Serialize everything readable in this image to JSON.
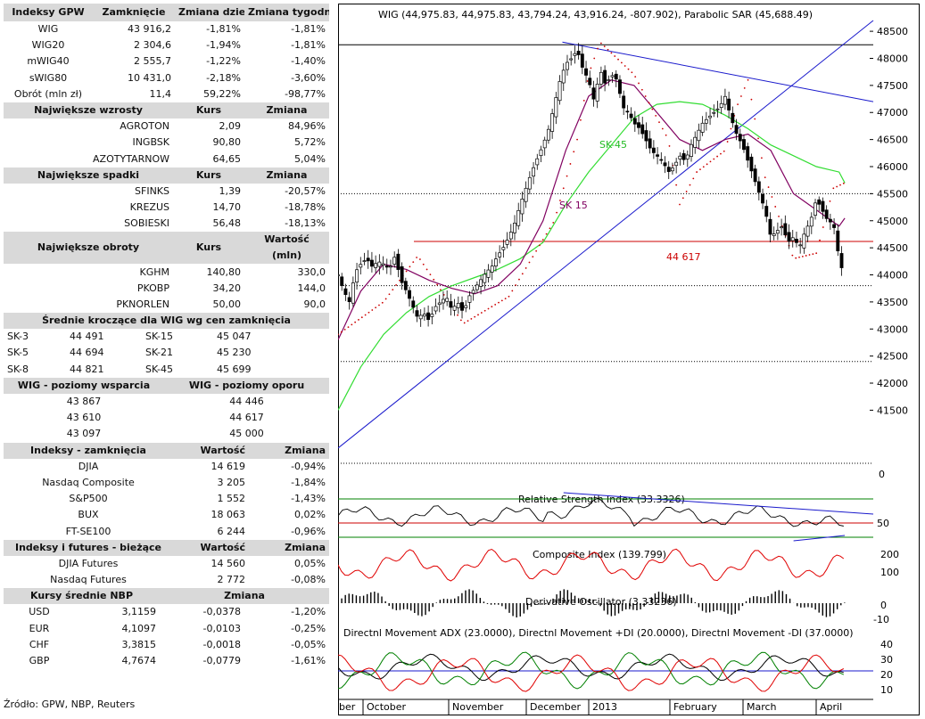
{
  "tables": {
    "gpw": {
      "headers": [
        "Indeksy GPW",
        "Zamknięcie",
        "Zmiana dzienna",
        "Zmiana tygodniowa"
      ],
      "rows": [
        [
          "WIG",
          "43 916,2",
          "-1,81%",
          "-1,81%"
        ],
        [
          "WIG20",
          "2 304,6",
          "-1,94%",
          "-1,81%"
        ],
        [
          "mWIG40",
          "2 555,7",
          "-1,22%",
          "-1,40%"
        ],
        [
          "sWIG80",
          "10 431,0",
          "-2,18%",
          "-3,60%"
        ],
        [
          "Obrót (mln zł)",
          "11,4",
          "59,22%",
          "-98,77%"
        ]
      ]
    },
    "wzrosty": {
      "headers": [
        "Największe wzrosty",
        "Kurs",
        "Zmiana"
      ],
      "rows": [
        [
          "AGROTON",
          "2,09",
          "84,96%"
        ],
        [
          "INGBSK",
          "90,80",
          "5,72%"
        ],
        [
          "AZOTYTARNOW",
          "64,65",
          "5,04%"
        ]
      ]
    },
    "spadki": {
      "headers": [
        "Największe spadki",
        "Kurs",
        "Zmiana"
      ],
      "rows": [
        [
          "SFINKS",
          "1,39",
          "-20,57%"
        ],
        [
          "KREZUS",
          "14,70",
          "-18,78%"
        ],
        [
          "SOBIESKI",
          "56,48",
          "-18,13%"
        ]
      ]
    },
    "obroty": {
      "headers": [
        "Największe obroty",
        "Kurs",
        "Wartość (mln)"
      ],
      "rows": [
        [
          "KGHM",
          "140,80",
          "330,0"
        ],
        [
          "PKOBP",
          "34,20",
          "144,0"
        ],
        [
          "PKNORLEN",
          "50,00",
          "90,0"
        ]
      ]
    },
    "srednie": {
      "header": "Średnie kroczące dla WIG wg cen zamknięcia",
      "rows": [
        [
          "SK-3",
          "44 491",
          "SK-15",
          "45 047"
        ],
        [
          "SK-5",
          "44 694",
          "SK-21",
          "45 230"
        ],
        [
          "SK-8",
          "44 821",
          "SK-45",
          "45 699"
        ]
      ]
    },
    "poziomy": {
      "headers": [
        "WIG - poziomy wsparcia",
        "WIG - poziomy oporu"
      ],
      "rows": [
        [
          "43 867",
          "44 446"
        ],
        [
          "43 610",
          "44 617"
        ],
        [
          "43 097",
          "45 000"
        ]
      ]
    },
    "swiat": {
      "headers": [
        "Indeksy - zamknięcia",
        "Wartość",
        "Zmiana"
      ],
      "rows": [
        [
          "DJIA",
          "14 619",
          "-0,94%"
        ],
        [
          "Nasdaq Composite",
          "3 205",
          "-1,84%"
        ],
        [
          "S&P500",
          "1 552",
          "-1,43%"
        ],
        [
          "BUX",
          "18 063",
          "0,02%"
        ],
        [
          "FT-SE100",
          "6 244",
          "-0,96%"
        ]
      ]
    },
    "futures": {
      "headers": [
        "Indeksy i futures - bieżące",
        "Wartość",
        "Zmiana"
      ],
      "rows": [
        [
          "DJIA Futures",
          "14 560",
          "0,05%"
        ],
        [
          "Nasdaq Futures",
          "2 772",
          "-0,08%"
        ]
      ]
    },
    "nbp": {
      "headers": [
        "Kursy średnie NBP",
        "Zmiana"
      ],
      "rows": [
        [
          "USD",
          "3,1159",
          "-0,0378",
          "-1,20%"
        ],
        [
          "EUR",
          "4,1097",
          "-0,0103",
          "-0,25%"
        ],
        [
          "CHF",
          "3,3815",
          "-0,0018",
          "-0,05%"
        ],
        [
          "GBP",
          "4,7674",
          "-0,0779",
          "-1,61%"
        ]
      ]
    }
  },
  "source": "Źródło: GPW, NBP, Reuters",
  "colors": {
    "header_bg": "#d9d9d9",
    "candles": "#000000",
    "sar": "#cc0000",
    "sk15": "#800060",
    "sk45": "#33dd33",
    "trend": "#1a1acc",
    "level": "#cc0000"
  },
  "chart_data": [
    {
      "type": "candlestick",
      "title": "WIG (44,975.83, 44,975.83, 43,794.24, 43,916.24, -807.902), Parabolic SAR (45,688.49)",
      "yticks": [
        41500,
        42000,
        42500,
        43000,
        43500,
        44000,
        44500,
        45000,
        45500,
        46000,
        46500,
        47000,
        47500,
        48000,
        48500
      ],
      "ylim": [
        40700,
        48650
      ],
      "xticks": [
        "ber",
        "October",
        "November",
        "December",
        "2013",
        "February",
        "March",
        "April"
      ],
      "close_path": [
        [
          0,
          44000
        ],
        [
          5,
          43700
        ],
        [
          10,
          43500
        ],
        [
          15,
          44050
        ],
        [
          20,
          44200
        ],
        [
          25,
          44300
        ],
        [
          30,
          44150
        ],
        [
          35,
          44250
        ],
        [
          40,
          44200
        ],
        [
          45,
          44100
        ],
        [
          50,
          44350
        ],
        [
          55,
          43900
        ],
        [
          60,
          43700
        ],
        [
          65,
          43450
        ],
        [
          70,
          43200
        ],
        [
          75,
          43300
        ],
        [
          80,
          43150
        ],
        [
          85,
          43400
        ],
        [
          90,
          43500
        ],
        [
          95,
          43600
        ],
        [
          100,
          43350
        ],
        [
          105,
          43500
        ],
        [
          110,
          43300
        ],
        [
          115,
          43600
        ],
        [
          120,
          43750
        ],
        [
          125,
          43900
        ],
        [
          130,
          44050
        ],
        [
          135,
          44150
        ],
        [
          140,
          44350
        ],
        [
          145,
          44500
        ],
        [
          150,
          44700
        ],
        [
          155,
          44950
        ],
        [
          160,
          45300
        ],
        [
          165,
          45600
        ],
        [
          170,
          45900
        ],
        [
          175,
          46150
        ],
        [
          180,
          46400
        ],
        [
          185,
          46700
        ],
        [
          190,
          47150
        ],
        [
          195,
          47600
        ],
        [
          200,
          47900
        ],
        [
          205,
          48000
        ],
        [
          210,
          48150
        ],
        [
          215,
          47800
        ],
        [
          220,
          47600
        ],
        [
          225,
          47200
        ],
        [
          230,
          47800
        ],
        [
          235,
          47500
        ],
        [
          240,
          47700
        ],
        [
          245,
          47600
        ],
        [
          250,
          47100
        ],
        [
          255,
          47000
        ],
        [
          260,
          46800
        ],
        [
          265,
          46700
        ],
        [
          270,
          46500
        ],
        [
          275,
          46300
        ],
        [
          280,
          46200
        ],
        [
          285,
          46100
        ],
        [
          290,
          45900
        ],
        [
          295,
          46000
        ],
        [
          300,
          46200
        ],
        [
          305,
          46100
        ],
        [
          310,
          46400
        ],
        [
          315,
          46600
        ],
        [
          320,
          46800
        ],
        [
          325,
          46900
        ],
        [
          330,
          47000
        ],
        [
          335,
          47100
        ],
        [
          340,
          47300
        ],
        [
          345,
          46900
        ],
        [
          350,
          46600
        ],
        [
          355,
          46400
        ],
        [
          360,
          46100
        ],
        [
          365,
          45800
        ],
        [
          370,
          45500
        ],
        [
          375,
          45200
        ],
        [
          380,
          44700
        ],
        [
          385,
          44800
        ],
        [
          390,
          44900
        ],
        [
          395,
          44600
        ],
        [
          400,
          44700
        ],
        [
          405,
          44500
        ],
        [
          410,
          44800
        ],
        [
          415,
          45000
        ],
        [
          420,
          45400
        ],
        [
          425,
          45200
        ],
        [
          430,
          45000
        ],
        [
          435,
          44950
        ],
        [
          440,
          44300
        ],
        [
          445,
          43916
        ]
      ],
      "sar_path": [
        [
          0,
          42900
        ],
        [
          40,
          43500
        ],
        [
          70,
          44350
        ],
        [
          110,
          43100
        ],
        [
          150,
          43600
        ],
        [
          190,
          45000
        ],
        [
          210,
          46500
        ],
        [
          220,
          47700
        ],
        [
          230,
          48300
        ],
        [
          260,
          47700
        ],
        [
          290,
          46500
        ],
        [
          300,
          45300
        ],
        [
          315,
          45900
        ],
        [
          340,
          46300
        ],
        [
          350,
          47100
        ],
        [
          360,
          47600
        ],
        [
          375,
          45800
        ],
        [
          400,
          44300
        ],
        [
          420,
          44400
        ],
        [
          435,
          45600
        ],
        [
          445,
          45700
        ]
      ],
      "sk15_path": [
        [
          0,
          42800
        ],
        [
          20,
          43700
        ],
        [
          40,
          44200
        ],
        [
          60,
          44100
        ],
        [
          80,
          43900
        ],
        [
          100,
          43750
        ],
        [
          120,
          43650
        ],
        [
          140,
          43800
        ],
        [
          160,
          44200
        ],
        [
          180,
          45000
        ],
        [
          200,
          46300
        ],
        [
          220,
          47300
        ],
        [
          240,
          47600
        ],
        [
          260,
          47500
        ],
        [
          280,
          47000
        ],
        [
          300,
          46500
        ],
        [
          320,
          46300
        ],
        [
          340,
          46500
        ],
        [
          360,
          46600
        ],
        [
          380,
          46300
        ],
        [
          400,
          45500
        ],
        [
          420,
          45200
        ],
        [
          440,
          44900
        ],
        [
          445,
          45047
        ]
      ],
      "sk45_path": [
        [
          0,
          41500
        ],
        [
          20,
          42300
        ],
        [
          40,
          42900
        ],
        [
          60,
          43300
        ],
        [
          80,
          43600
        ],
        [
          100,
          43800
        ],
        [
          120,
          43950
        ],
        [
          140,
          44100
        ],
        [
          160,
          44300
        ],
        [
          180,
          44600
        ],
        [
          200,
          45300
        ],
        [
          220,
          45900
        ],
        [
          240,
          46400
        ],
        [
          260,
          46900
        ],
        [
          280,
          47150
        ],
        [
          300,
          47200
        ],
        [
          320,
          47150
        ],
        [
          340,
          46950
        ],
        [
          360,
          46700
        ],
        [
          380,
          46400
        ],
        [
          400,
          46200
        ],
        [
          420,
          46000
        ],
        [
          440,
          45900
        ],
        [
          445,
          45699
        ]
      ],
      "levels": [
        {
          "value": 48250,
          "label": ""
        },
        {
          "value": 45500,
          "label": ""
        },
        {
          "value": 44617,
          "label": "44 617"
        },
        {
          "value": 43800,
          "label": ""
        },
        {
          "value": 42400,
          "label": ""
        }
      ],
      "trendlines": [
        [
          [
            0,
            40800
          ],
          [
            470,
            48700
          ]
        ],
        [
          [
            197,
            48300
          ],
          [
            470,
            47200
          ]
        ]
      ],
      "series_labels": [
        "SK-45",
        "SK 15"
      ]
    },
    {
      "type": "line",
      "title": "Relative Strength Index (33.3326)",
      "yticks": [
        "50"
      ],
      "ylim": [
        20,
        80
      ],
      "levels": [
        30,
        50,
        70
      ]
    },
    {
      "type": "line",
      "title": "Composite Index (139.799)",
      "yticks": [
        "200",
        "100"
      ],
      "ylim": [
        50,
        250
      ]
    },
    {
      "type": "bar",
      "title": "Derivative Oscillator (3.33236)",
      "yticks": [
        "0",
        "-10"
      ],
      "ylim": [
        -15,
        12
      ]
    },
    {
      "type": "line",
      "title": "Directnl Movement ADX (23.0000), Directnl Movement +DI (20.0000), Directnl Movement -DI (37.0000)",
      "yticks": [
        "40",
        "30",
        "20",
        "10"
      ],
      "ylim": [
        5,
        48
      ],
      "series": [
        {
          "name": "Directnl Movement ADX",
          "last": 23.0
        },
        {
          "name": "Directnl Movement +DI",
          "last": 20.0
        },
        {
          "name": "Directnl Movement -DI",
          "last": 37.0
        }
      ]
    }
  ],
  "zero_axis_label": "0"
}
